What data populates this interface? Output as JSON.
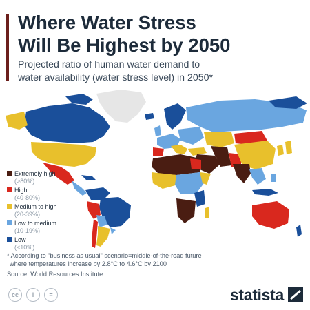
{
  "title": "Where Water Stress\nWill Be Highest by 2050",
  "subtitle": "Projected ratio of human water demand to\nwater availability (water stress level) in 2050*",
  "legend": [
    {
      "label": "Extremely high",
      "range": "(>80%)",
      "color": "#4a1d12"
    },
    {
      "label": "High",
      "range": "(40-80%)",
      "color": "#d9281e"
    },
    {
      "label": "Medium to high",
      "range": "(20-39%)",
      "color": "#e8c02c"
    },
    {
      "label": "Low to medium",
      "range": "(10-19%)",
      "color": "#6aa6e0"
    },
    {
      "label": "Low",
      "range": "(<10%)",
      "color": "#1a4f9a"
    }
  ],
  "no_data_color": "#e6e6e6",
  "footnote": "* According to \"business as usual\" scenario=middle-of-the-road future\n   where temperatures increase by 2.8°C to 4.6°C by 2100",
  "source": "Source: World Resources Institute",
  "license_icons": [
    "cc",
    "i",
    "="
  ],
  "brand": "statista",
  "accent_color": "#6b1f1c"
}
